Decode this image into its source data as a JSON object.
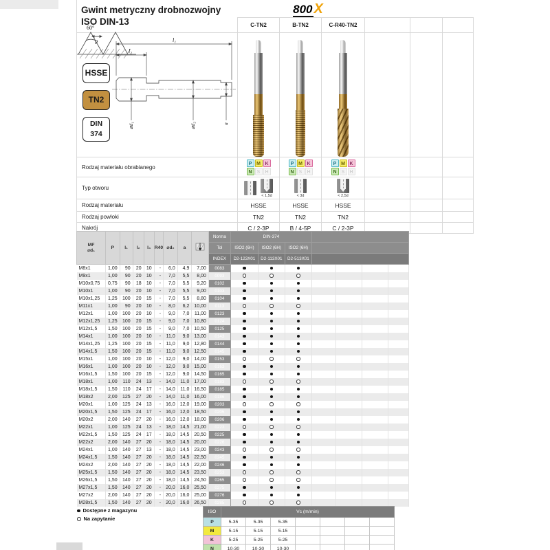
{
  "page": {
    "title_line1": "Gwint metryczny drobnozwojny",
    "title_line2": "ISO DIN-13",
    "logo": {
      "part1": "800",
      "part2": "X",
      "x_color": "#f0a30a"
    }
  },
  "badges": {
    "material": "HSSE",
    "coating": "TN2",
    "coating_bg": "#c29040",
    "standard_line1": "DIN",
    "standard_line2": "374"
  },
  "diagram": {
    "angle_label": "60°",
    "pitch_label": "P",
    "dim_l1": "l₁",
    "dim_l2": "l₂",
    "dim_d1": "⌀d₁",
    "dim_d2": "⌀d₂",
    "dim_a": "a"
  },
  "products": {
    "headers": [
      "C-TN2",
      "B-TN2",
      "C-R40-TN2"
    ],
    "chips_active": [
      "P",
      "M",
      "K",
      "N"
    ],
    "chips_inactive": [
      "S",
      "H"
    ],
    "hole_types": [
      [
        {
          "kind": "through",
          "label": ""
        },
        {
          "kind": "blind",
          "label": "< 1,5d"
        }
      ],
      [
        {
          "kind": "through",
          "label": "< 3d"
        }
      ],
      [
        {
          "kind": "blind",
          "label": "< 2,5d"
        }
      ]
    ],
    "material": [
      "HSSE",
      "HSSE",
      "HSSE"
    ],
    "coating": [
      "TN2",
      "TN2",
      "TN2"
    ],
    "chamfer": [
      "C / 2-3P",
      "B / 4-5P",
      "C / 2-3P"
    ]
  },
  "spec_labels": {
    "workpiece": "Rodzaj materiału obrabianego",
    "hole": "Typ otworu",
    "material": "Rodzaj materiału",
    "coating": "Rodzaj powłoki",
    "chamfer": "Nakrój"
  },
  "table": {
    "columns": [
      "MF ⌀d₁",
      "P",
      "l₁",
      "l₂",
      "l₃",
      "R40",
      "⌀d₂",
      "a"
    ],
    "norma_label": "Norma",
    "norma_value": "DIN-374",
    "tol_label": "Tol",
    "tol_values": [
      "ISO2 (6H)",
      "ISO2 (6H)",
      "ISO2 (6H)"
    ],
    "index_label": "INDEX",
    "index_values": [
      "D2-123X01",
      "D2-113X01",
      "D2-513X01"
    ],
    "rows": [
      [
        "M8x1",
        [
          "1,00",
          "90",
          "20",
          "10",
          "-",
          "6,0",
          "4,9",
          "7,00"
        ],
        "0083",
        "s"
      ],
      [
        "M9x1",
        [
          "1,00",
          "90",
          "20",
          "10",
          "-",
          "7,0",
          "5,5",
          "8,00"
        ],
        "0093",
        "r"
      ],
      [
        "M10x0,75",
        [
          "0,75",
          "90",
          "18",
          "10",
          "-",
          "7,0",
          "5,5",
          "9,20"
        ],
        "0102",
        "s"
      ],
      [
        "M10x1",
        [
          "1,00",
          "90",
          "20",
          "10",
          "-",
          "7,0",
          "5,5",
          "9,00"
        ],
        "0103",
        "s"
      ],
      [
        "M10x1,25",
        [
          "1,25",
          "100",
          "20",
          "15",
          "-",
          "7,0",
          "5,5",
          "8,80"
        ],
        "0104",
        "s"
      ],
      [
        "M11x1",
        [
          "1,00",
          "90",
          "20",
          "10",
          "-",
          "8,0",
          "6,2",
          "10,00"
        ],
        "0113",
        "r"
      ],
      [
        "M12x1",
        [
          "1,00",
          "100",
          "20",
          "10",
          "-",
          "9,0",
          "7,0",
          "11,00"
        ],
        "0123",
        "s"
      ],
      [
        "M12x1,25",
        [
          "1,25",
          "100",
          "20",
          "15",
          "-",
          "9,0",
          "7,0",
          "10,80"
        ],
        "0124",
        "s"
      ],
      [
        "M12x1,5",
        [
          "1,50",
          "100",
          "20",
          "15",
          "-",
          "9,0",
          "7,0",
          "10,50"
        ],
        "0125",
        "s"
      ],
      [
        "M14x1",
        [
          "1,00",
          "100",
          "20",
          "10",
          "-",
          "11,0",
          "9,0",
          "13,00"
        ],
        "0143",
        "s"
      ],
      [
        "M14x1,25",
        [
          "1,25",
          "100",
          "20",
          "15",
          "-",
          "11,0",
          "9,0",
          "12,80"
        ],
        "0144",
        "s"
      ],
      [
        "M14x1,5",
        [
          "1,50",
          "100",
          "20",
          "15",
          "-",
          "11,0",
          "9,0",
          "12,50"
        ],
        "0145",
        "s"
      ],
      [
        "M15x1",
        [
          "1,00",
          "100",
          "20",
          "10",
          "-",
          "12,0",
          "9,0",
          "14,00"
        ],
        "0153",
        "r"
      ],
      [
        "M16x1",
        [
          "1,00",
          "100",
          "20",
          "10",
          "-",
          "12,0",
          "9,0",
          "15,00"
        ],
        "0163",
        "s"
      ],
      [
        "M16x1,5",
        [
          "1,50",
          "100",
          "20",
          "15",
          "-",
          "12,0",
          "9,0",
          "14,50"
        ],
        "0165",
        "s"
      ],
      [
        "M18x1",
        [
          "1,00",
          "110",
          "24",
          "13",
          "-",
          "14,0",
          "11,0",
          "17,00"
        ],
        "0183",
        "r"
      ],
      [
        "M18x1,5",
        [
          "1,50",
          "110",
          "24",
          "17",
          "-",
          "14,0",
          "11,0",
          "16,50"
        ],
        "0185",
        "s"
      ],
      [
        "M18x2",
        [
          "2,00",
          "125",
          "27",
          "20",
          "-",
          "14,0",
          "11,0",
          "16,00"
        ],
        "0186",
        "s"
      ],
      [
        "M20x1",
        [
          "1,00",
          "125",
          "24",
          "13",
          "-",
          "16,0",
          "12,0",
          "19,00"
        ],
        "0203",
        "r"
      ],
      [
        "M20x1,5",
        [
          "1,50",
          "125",
          "24",
          "17",
          "-",
          "16,0",
          "12,0",
          "18,50"
        ],
        "0205",
        "s"
      ],
      [
        "M20x2",
        [
          "2,00",
          "140",
          "27",
          "20",
          "-",
          "16,0",
          "12,0",
          "18,00"
        ],
        "0206",
        "s"
      ],
      [
        "M22x1",
        [
          "1,00",
          "125",
          "24",
          "13",
          "-",
          "18,0",
          "14,5",
          "21,00"
        ],
        "0223",
        "r"
      ],
      [
        "M22x1,5",
        [
          "1,50",
          "125",
          "24",
          "17",
          "-",
          "18,0",
          "14,5",
          "20,50"
        ],
        "0225",
        "s"
      ],
      [
        "M22x2",
        [
          "2,00",
          "140",
          "27",
          "20",
          "-",
          "18,0",
          "14,5",
          "20,00"
        ],
        "0226",
        "s"
      ],
      [
        "M24x1",
        [
          "1,00",
          "140",
          "27",
          "13",
          "-",
          "18,0",
          "14,5",
          "23,00"
        ],
        "0243",
        "r"
      ],
      [
        "M24x1,5",
        [
          "1,50",
          "140",
          "27",
          "20",
          "-",
          "18,0",
          "14,5",
          "22,50"
        ],
        "0245",
        "s"
      ],
      [
        "M24x2",
        [
          "2,00",
          "140",
          "27",
          "20",
          "-",
          "18,0",
          "14,5",
          "22,00"
        ],
        "0246",
        "s"
      ],
      [
        "M25x1,5",
        [
          "1,50",
          "140",
          "27",
          "20",
          "-",
          "18,0",
          "14,5",
          "23,50"
        ],
        "0253",
        "r"
      ],
      [
        "M26x1,5",
        [
          "1,50",
          "140",
          "27",
          "20",
          "-",
          "18,0",
          "14,5",
          "24,50"
        ],
        "0265",
        "r"
      ],
      [
        "M27x1,5",
        [
          "1,50",
          "140",
          "27",
          "20",
          "-",
          "20,0",
          "16,0",
          "25,50"
        ],
        "0275",
        "s"
      ],
      [
        "M27x2",
        [
          "2,00",
          "140",
          "27",
          "20",
          "-",
          "20,0",
          "16,0",
          "25,00"
        ],
        "0276",
        "s"
      ],
      [
        "M28x1,5",
        [
          "1,50",
          "140",
          "27",
          "20",
          "-",
          "20,0",
          "16,0",
          "26,50"
        ],
        "0285",
        "r"
      ]
    ]
  },
  "legend": {
    "in_stock": "Dostępne z magazynu",
    "on_request": "Na zapytanie"
  },
  "vc_table": {
    "corner": "ISO",
    "header": "Vc (m/min)",
    "rows": [
      {
        "label": "P",
        "color": "#b9e0e4",
        "values": [
          "5-35",
          "5-35",
          "5-35"
        ]
      },
      {
        "label": "M",
        "color": "#f2e93f",
        "values": [
          "5-15",
          "5-15",
          "5-15"
        ]
      },
      {
        "label": "K",
        "color": "#f2c3d8",
        "values": [
          "5-25",
          "5-25",
          "5-25"
        ]
      },
      {
        "label": "N",
        "color": "#c0e2ab",
        "values": [
          "10-30",
          "10-30",
          "10-30"
        ]
      },
      {
        "label": "S",
        "color": "#e9d9b9",
        "values": [
          "-",
          "-",
          "-"
        ]
      }
    ]
  }
}
